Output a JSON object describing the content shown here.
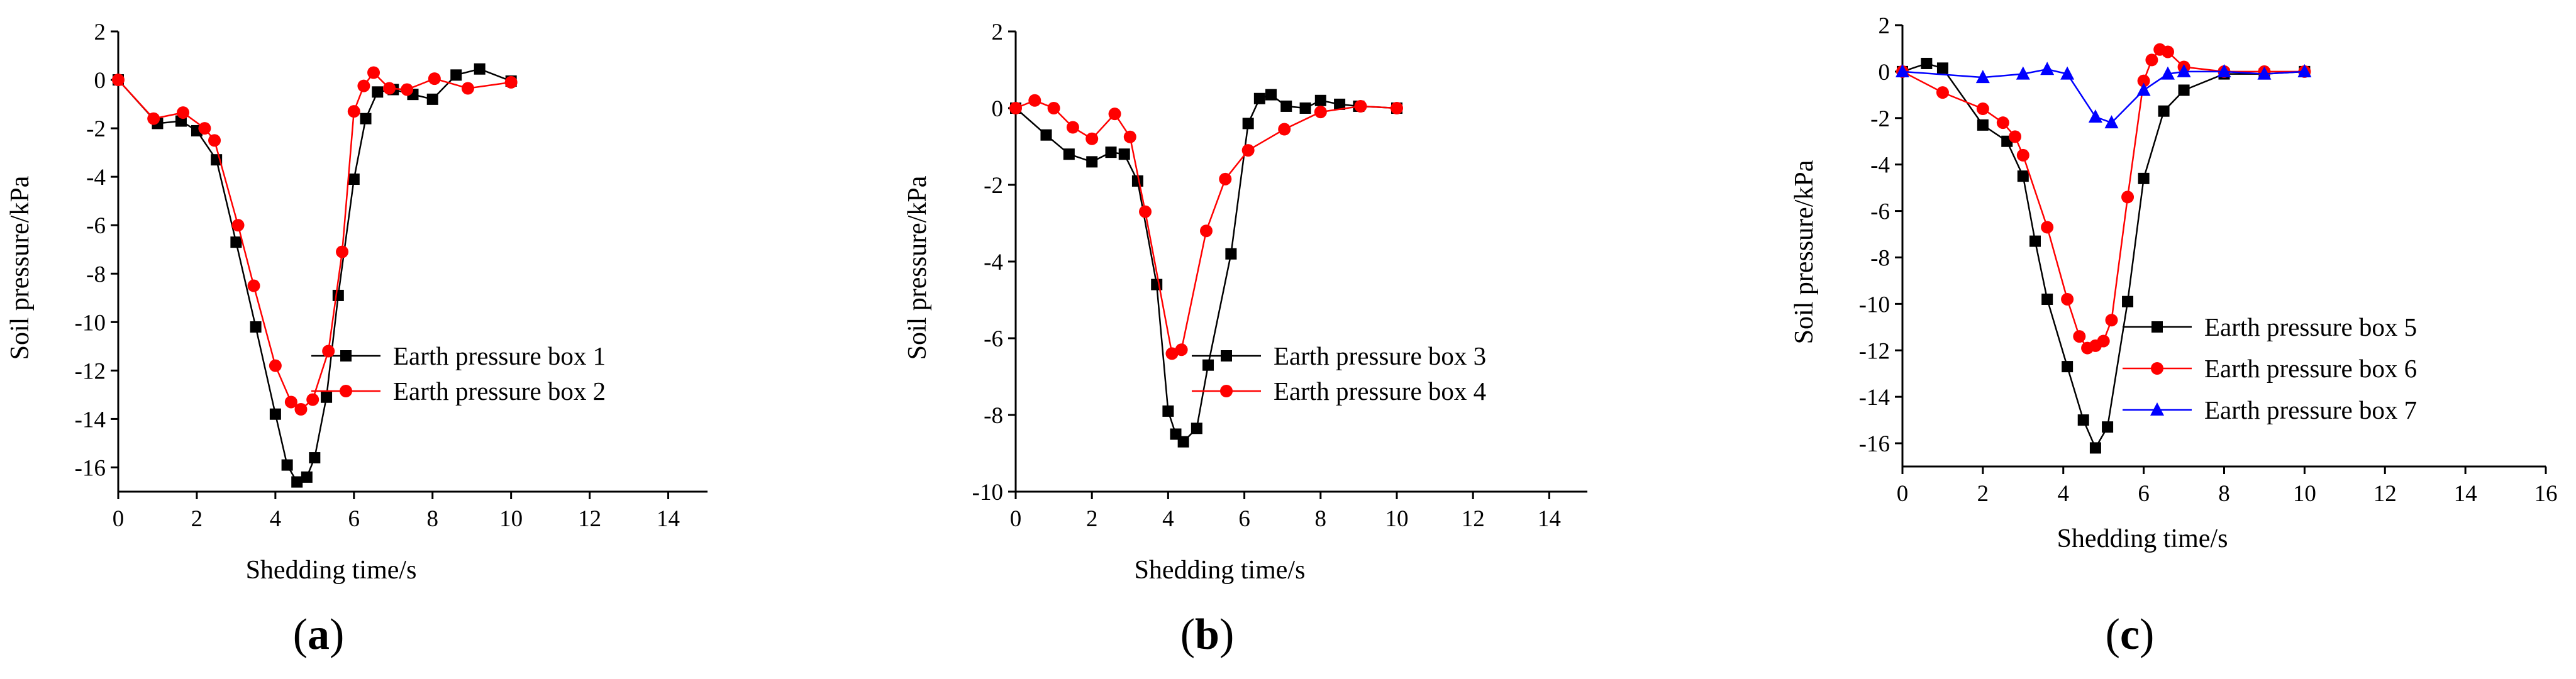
{
  "chart_data": [
    {
      "type": "line",
      "panel_label": "(a)",
      "panel_letter": "a",
      "xlabel": "Shedding time/s",
      "ylabel": "Soil pressure/kPa",
      "xlim": [
        0,
        15
      ],
      "ylim": [
        -17,
        2
      ],
      "xticks": [
        0,
        2,
        4,
        6,
        8,
        10,
        12,
        14
      ],
      "yticks": [
        2,
        0,
        -2,
        -4,
        -6,
        -8,
        -10,
        -12,
        -14,
        -16
      ],
      "legend_position": "center-right",
      "series": [
        {
          "name": "Earth pressure box 1",
          "color": "#000000",
          "marker": "square",
          "x": [
            0,
            1.0,
            1.6,
            2.0,
            2.5,
            3.0,
            3.5,
            4.0,
            4.3,
            4.55,
            4.8,
            5.0,
            5.3,
            5.6,
            6.0,
            6.3,
            6.6,
            7.0,
            7.5,
            8.0,
            8.6,
            9.2,
            10.0
          ],
          "y": [
            0,
            -1.8,
            -1.7,
            -2.1,
            -3.3,
            -6.7,
            -10.2,
            -13.8,
            -15.9,
            -16.6,
            -16.4,
            -15.6,
            -13.1,
            -8.9,
            -4.1,
            -1.6,
            -0.5,
            -0.4,
            -0.6,
            -0.8,
            0.2,
            0.45,
            -0.05
          ]
        },
        {
          "name": "Earth pressure box 2",
          "color": "#ff0000",
          "marker": "circle",
          "x": [
            0,
            0.9,
            1.65,
            2.2,
            2.45,
            3.05,
            3.45,
            4.0,
            4.4,
            4.65,
            4.95,
            5.35,
            5.7,
            6.0,
            6.25,
            6.5,
            6.9,
            7.35,
            8.05,
            8.9,
            10.0
          ],
          "y": [
            0,
            -1.6,
            -1.35,
            -2.0,
            -2.5,
            -6.0,
            -8.5,
            -11.8,
            -13.3,
            -13.6,
            -13.2,
            -11.2,
            -7.1,
            -1.3,
            -0.25,
            0.3,
            -0.35,
            -0.4,
            0.05,
            -0.35,
            -0.1
          ]
        }
      ]
    },
    {
      "type": "line",
      "panel_label": "(b)",
      "panel_letter": "b",
      "xlabel": "Shedding time/s",
      "ylabel": "Soil pressure/kPa",
      "xlim": [
        0,
        15
      ],
      "ylim": [
        -10,
        2
      ],
      "xticks": [
        0,
        2,
        4,
        6,
        8,
        10,
        12,
        14
      ],
      "yticks": [
        2,
        0,
        -2,
        -4,
        -6,
        -8,
        -10
      ],
      "legend_position": "center-right",
      "series": [
        {
          "name": "Earth pressure box 3",
          "color": "#000000",
          "marker": "square",
          "x": [
            0,
            0.8,
            1.4,
            2.0,
            2.5,
            2.85,
            3.2,
            3.7,
            4.0,
            4.2,
            4.4,
            4.75,
            5.05,
            5.65,
            6.1,
            6.4,
            6.7,
            7.1,
            7.6,
            8.0,
            8.5,
            9.0,
            10.0
          ],
          "y": [
            0,
            -0.7,
            -1.2,
            -1.4,
            -1.15,
            -1.2,
            -1.9,
            -4.6,
            -7.9,
            -8.5,
            -8.7,
            -8.35,
            -6.7,
            -3.8,
            -0.4,
            0.25,
            0.35,
            0.05,
            0,
            0.2,
            0.1,
            0.05,
            0
          ]
        },
        {
          "name": "Earth pressure box 4",
          "color": "#ff0000",
          "marker": "circle",
          "x": [
            0,
            0.5,
            1.0,
            1.5,
            2.0,
            2.6,
            3.0,
            3.4,
            4.1,
            4.35,
            5.0,
            5.5,
            6.1,
            7.05,
            8.0,
            9.05,
            10.0
          ],
          "y": [
            0,
            0.2,
            0,
            -0.5,
            -0.8,
            -0.15,
            -0.75,
            -2.7,
            -6.4,
            -6.3,
            -3.2,
            -1.85,
            -1.1,
            -0.55,
            -0.1,
            0.05,
            0
          ]
        }
      ]
    },
    {
      "type": "line",
      "panel_label": "(c)",
      "panel_letter": "c",
      "xlabel": "Shedding time/s",
      "ylabel": "Soil pressure/kPa",
      "xlim": [
        0,
        16
      ],
      "ylim": [
        -17,
        2
      ],
      "xticks": [
        0,
        2,
        4,
        6,
        8,
        10,
        12,
        14,
        16
      ],
      "yticks": [
        2,
        0,
        -2,
        -4,
        -6,
        -8,
        -10,
        -12,
        -14,
        -16
      ],
      "legend_position": "center-right",
      "series": [
        {
          "name": "Earth pressure box 5",
          "color": "#000000",
          "marker": "square",
          "x": [
            0,
            0.6,
            1.0,
            2.0,
            2.6,
            3.0,
            3.3,
            3.6,
            4.1,
            4.5,
            4.8,
            5.1,
            5.6,
            6.0,
            6.5,
            7.0,
            8.0,
            9.0,
            10.0
          ],
          "y": [
            0,
            0.35,
            0.15,
            -2.3,
            -3.0,
            -4.5,
            -7.3,
            -9.8,
            -12.7,
            -15.0,
            -16.2,
            -15.3,
            -9.9,
            -4.6,
            -1.7,
            -0.8,
            -0.1,
            -0.1,
            0
          ]
        },
        {
          "name": "Earth pressure box 6",
          "color": "#ff0000",
          "marker": "circle",
          "x": [
            0,
            1.0,
            2.0,
            2.5,
            2.8,
            3.0,
            3.6,
            4.1,
            4.4,
            4.6,
            4.8,
            5.0,
            5.2,
            5.6,
            6.0,
            6.2,
            6.4,
            6.6,
            7.0,
            8.0,
            9.0,
            10.0
          ],
          "y": [
            0,
            -0.9,
            -1.6,
            -2.2,
            -2.8,
            -3.6,
            -6.7,
            -9.8,
            -11.4,
            -11.9,
            -11.8,
            -11.6,
            -10.7,
            -5.4,
            -0.4,
            0.5,
            0.95,
            0.85,
            0.2,
            0,
            0,
            0
          ]
        },
        {
          "name": "Earth pressure box 7",
          "color": "#0000ff",
          "marker": "triangle",
          "x": [
            0,
            2.0,
            3.0,
            3.6,
            4.1,
            4.8,
            5.2,
            6.0,
            6.6,
            7.0,
            8.0,
            9.0,
            10.0
          ],
          "y": [
            0,
            -0.25,
            -0.1,
            0.1,
            -0.1,
            -1.95,
            -2.2,
            -0.8,
            -0.1,
            0,
            0,
            -0.1,
            0
          ]
        }
      ]
    }
  ]
}
